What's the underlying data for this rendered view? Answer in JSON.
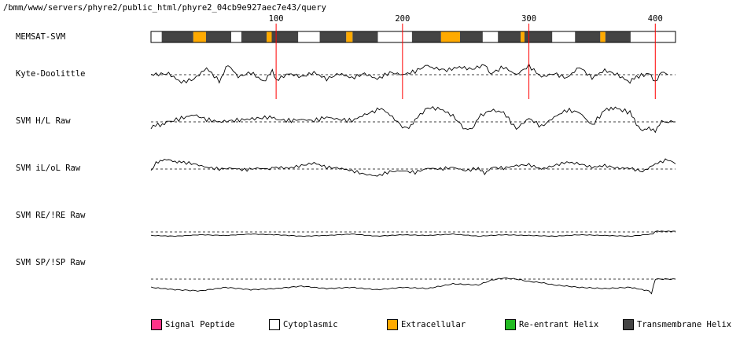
{
  "header": {
    "path": "/bmm/www/servers/phyre2/public_html/phyre2_04cb9e927aec7e43/query"
  },
  "tracks": {
    "memsat": "MEMSAT-SVM",
    "kyte": "Kyte-Doolittle",
    "svm_hl": "SVM H/L Raw",
    "svm_ilol": "SVM iL/oL Raw",
    "svm_re": "SVM RE/!RE Raw",
    "svm_sp": "SVM SP/!SP Raw"
  },
  "legend": [
    {
      "label": "Signal Peptide",
      "color": "#ff3388"
    },
    {
      "label": "Cytoplasmic",
      "color": "#ffffff"
    },
    {
      "label": "Extracellular",
      "color": "#ffaa00"
    },
    {
      "label": "Re-entrant Helix",
      "color": "#22bb22"
    },
    {
      "label": "Transmembrane Helix",
      "color": "#444444"
    }
  ],
  "chart_data": {
    "type": "line",
    "sequence_length": 416,
    "x_ticks": [
      "100",
      "200",
      "300",
      "400"
    ],
    "x_tick_values": [
      100,
      200,
      300,
      400
    ],
    "segments": [
      {
        "type": "Cytoplasmic",
        "start": 1,
        "end": 9
      },
      {
        "type": "Transmembrane Helix",
        "start": 10,
        "end": 34
      },
      {
        "type": "Extracellular",
        "start": 35,
        "end": 44
      },
      {
        "type": "Transmembrane Helix",
        "start": 45,
        "end": 64
      },
      {
        "type": "Cytoplasmic",
        "start": 65,
        "end": 72
      },
      {
        "type": "Transmembrane Helix",
        "start": 73,
        "end": 92
      },
      {
        "type": "Extracellular",
        "start": 93,
        "end": 96
      },
      {
        "type": "Transmembrane Helix",
        "start": 97,
        "end": 117
      },
      {
        "type": "Cytoplasmic",
        "start": 118,
        "end": 134
      },
      {
        "type": "Transmembrane Helix",
        "start": 135,
        "end": 155
      },
      {
        "type": "Extracellular",
        "start": 156,
        "end": 160
      },
      {
        "type": "Transmembrane Helix",
        "start": 161,
        "end": 180
      },
      {
        "type": "Cytoplasmic",
        "start": 181,
        "end": 207
      },
      {
        "type": "Transmembrane Helix",
        "start": 208,
        "end": 230
      },
      {
        "type": "Extracellular",
        "start": 231,
        "end": 245
      },
      {
        "type": "Transmembrane Helix",
        "start": 246,
        "end": 263
      },
      {
        "type": "Cytoplasmic",
        "start": 264,
        "end": 275
      },
      {
        "type": "Transmembrane Helix",
        "start": 276,
        "end": 293
      },
      {
        "type": "Extracellular",
        "start": 294,
        "end": 296
      },
      {
        "type": "Transmembrane Helix",
        "start": 297,
        "end": 318
      },
      {
        "type": "Cytoplasmic",
        "start": 319,
        "end": 336
      },
      {
        "type": "Transmembrane Helix",
        "start": 337,
        "end": 356
      },
      {
        "type": "Extracellular",
        "start": 357,
        "end": 360
      },
      {
        "type": "Transmembrane Helix",
        "start": 361,
        "end": 380
      },
      {
        "type": "Cytoplasmic",
        "start": 381,
        "end": 416
      }
    ],
    "series": [
      {
        "name": "Kyte-Doolittle",
        "x": [
          1,
          15,
          25,
          35,
          45,
          55,
          62,
          70,
          80,
          90,
          97,
          100,
          110,
          120,
          130,
          140,
          150,
          160,
          170,
          180,
          190,
          200,
          210,
          220,
          225,
          235,
          245,
          255,
          265,
          270,
          280,
          290,
          300,
          310,
          320,
          330,
          340,
          350,
          360,
          370,
          380,
          385,
          395,
          400,
          405,
          410
        ],
        "values": [
          0,
          0.05,
          -0.35,
          -0.2,
          0.3,
          -0.3,
          0.45,
          -0.1,
          0.1,
          -0.3,
          0.15,
          -0.25,
          0.05,
          -0.1,
          0.1,
          -0.2,
          0.05,
          -0.15,
          0.05,
          -0.2,
          0.1,
          0,
          0.15,
          0.45,
          0.3,
          0.2,
          0.35,
          0.25,
          0.45,
          0.05,
          0.35,
          0,
          0.4,
          -0.1,
          0.05,
          -0.15,
          0.35,
          -0.15,
          0.2,
          0,
          -0.35,
          -0.1,
          0.05,
          -0.3,
          0.1,
          0
        ]
      },
      {
        "name": "SVM H/L Raw",
        "x": [
          1,
          10,
          15,
          25,
          35,
          45,
          55,
          65,
          75,
          85,
          95,
          100,
          110,
          120,
          130,
          140,
          150,
          160,
          170,
          180,
          185,
          190,
          200,
          205,
          210,
          220,
          230,
          240,
          250,
          255,
          260,
          270,
          280,
          290,
          300,
          310,
          320,
          330,
          340,
          350,
          360,
          365,
          370,
          380,
          385,
          390,
          395,
          400,
          405,
          416
        ],
        "values": [
          -0.2,
          -0.1,
          0,
          0.15,
          0.3,
          0.1,
          0,
          0.05,
          0.1,
          0.15,
          0.2,
          0.1,
          0.05,
          0.1,
          0.05,
          0.2,
          0.1,
          0.05,
          0.3,
          0.5,
          0.55,
          0.3,
          -0.2,
          -0.3,
          0.1,
          0.6,
          0.55,
          0.25,
          -0.35,
          -0.3,
          0.2,
          0.5,
          0.4,
          -0.3,
          0.15,
          -0.2,
          0.2,
          0.5,
          0.4,
          -0.15,
          0.5,
          0.6,
          0.55,
          0.4,
          -0.1,
          -0.35,
          -0.3,
          -0.35,
          0,
          0
        ]
      },
      {
        "name": "SVM iL/oL Raw",
        "x": [
          1,
          5,
          10,
          15,
          20,
          25,
          35,
          45,
          55,
          65,
          75,
          85,
          95,
          100,
          110,
          120,
          130,
          140,
          150,
          160,
          170,
          180,
          190,
          200,
          210,
          220,
          230,
          240,
          250,
          260,
          265,
          270,
          280,
          290,
          300,
          310,
          320,
          330,
          340,
          350,
          360,
          370,
          380,
          390,
          400,
          410,
          416
        ],
        "values": [
          -0.1,
          0.35,
          0.55,
          0.5,
          0.45,
          0.4,
          0.3,
          0.1,
          0,
          0.05,
          -0.05,
          0.05,
          0,
          0.1,
          0.05,
          0.2,
          0.35,
          0.1,
          0.05,
          -0.1,
          -0.3,
          -0.4,
          -0.15,
          -0.1,
          -0.2,
          0.05,
          0,
          0.1,
          -0.1,
          0.05,
          -0.3,
          0.1,
          0.05,
          0.2,
          0.25,
          0,
          0.2,
          0.4,
          0.3,
          0.1,
          0.2,
          0.05,
          0.05,
          -0.15,
          0.3,
          0.55,
          0.3
        ]
      },
      {
        "name": "SVM RE/!RE Raw",
        "x": [
          1,
          20,
          40,
          60,
          80,
          100,
          120,
          140,
          160,
          180,
          200,
          220,
          240,
          260,
          280,
          300,
          320,
          340,
          360,
          380,
          398,
          400,
          405,
          416
        ],
        "values": [
          -0.25,
          -0.3,
          -0.2,
          -0.25,
          -0.15,
          -0.2,
          -0.3,
          -0.25,
          -0.15,
          -0.3,
          -0.2,
          -0.25,
          -0.15,
          -0.3,
          -0.2,
          -0.25,
          -0.3,
          -0.2,
          -0.25,
          -0.3,
          -0.15,
          0.05,
          0.05,
          0.05
        ]
      },
      {
        "name": "SVM SP/!SP Raw",
        "x": [
          1,
          20,
          40,
          60,
          80,
          100,
          120,
          140,
          160,
          180,
          200,
          220,
          240,
          260,
          270,
          280,
          290,
          300,
          310,
          320,
          340,
          360,
          380,
          395,
          397,
          400,
          416
        ],
        "values": [
          -0.35,
          -0.45,
          -0.5,
          -0.35,
          -0.45,
          -0.4,
          -0.3,
          -0.4,
          -0.35,
          -0.45,
          -0.35,
          -0.4,
          -0.2,
          -0.25,
          -0.05,
          0.05,
          0,
          -0.1,
          -0.15,
          -0.25,
          -0.35,
          -0.4,
          -0.35,
          -0.5,
          -0.6,
          0,
          0
        ]
      }
    ]
  }
}
